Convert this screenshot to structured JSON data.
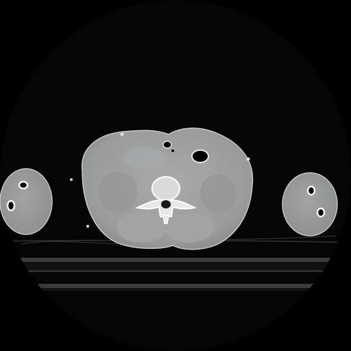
{
  "viewer": {
    "background_color": "#000000",
    "field_of_view_color": "#0a0a0a",
    "image_kind": "axial CT slice, bone window"
  },
  "colors": {
    "soft_tissue": "#9ea0a0",
    "soft_tissue_dark": "#8b8d8d",
    "muscle": "#a6a8a8",
    "bone": "#f2f2f2",
    "bone_edge": "#ffffff",
    "air": "#000000",
    "table": "#3a3a3a",
    "table_dark": "#1f1f1f",
    "skin_line": "#c8c8c8"
  }
}
